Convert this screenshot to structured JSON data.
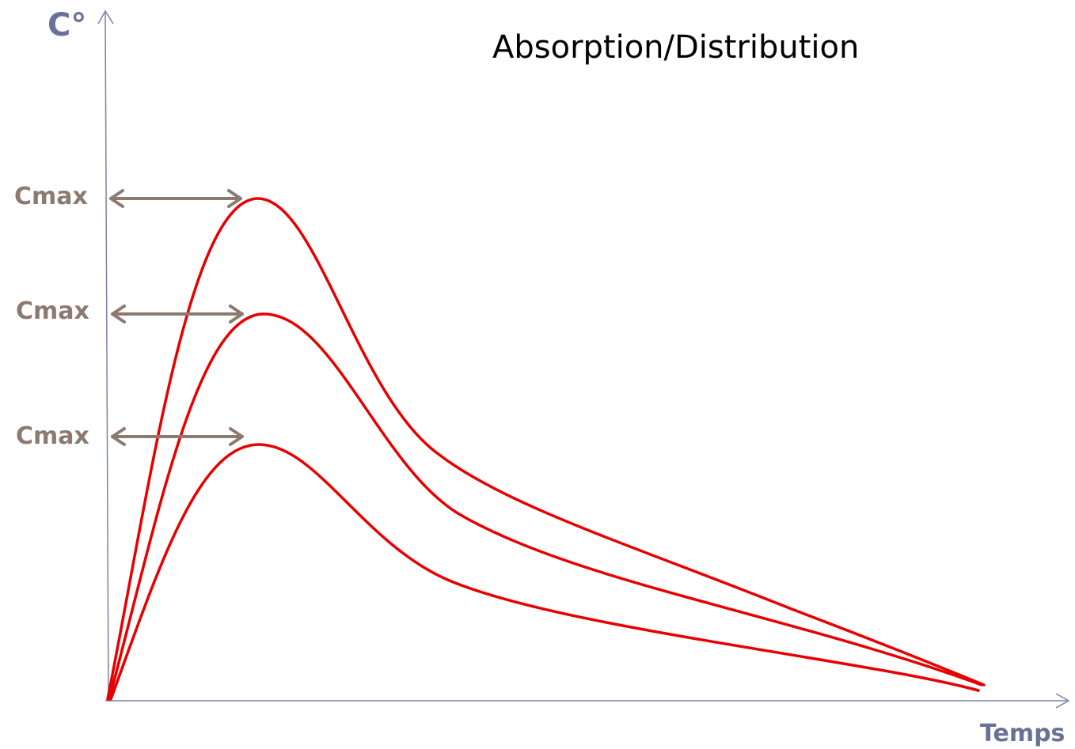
{
  "title": "Absorption/Distribution",
  "y_axis_label": "C°",
  "x_axis_label": "Temps",
  "cmax_labels": [
    "Cmax",
    "Cmax",
    "Cmax"
  ],
  "colors": {
    "curve": "#e80000",
    "axis": "#7b82a8",
    "axis_label": "#6a7196",
    "cmax": "#8c7a70",
    "title": "#000000"
  }
}
